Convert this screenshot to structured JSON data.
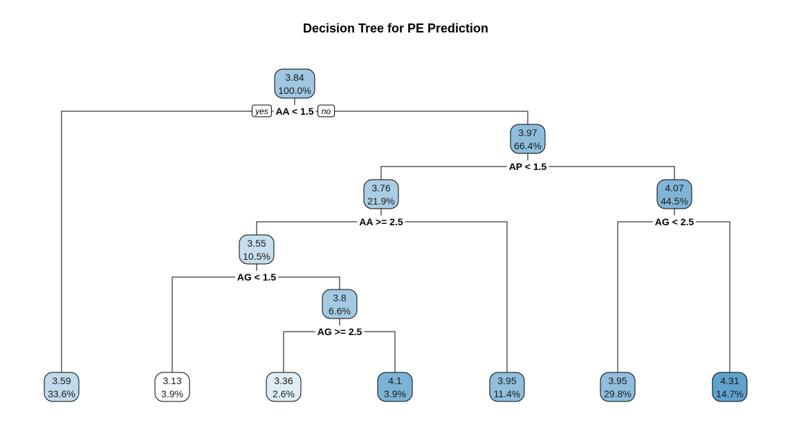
{
  "title": "Decision Tree for PE Prediction",
  "yes_label": "yes",
  "no_label": "no",
  "colors": {
    "node_scale": [
      "#ffffff",
      "#5fa2cd"
    ],
    "edge": "#000000"
  },
  "nodes": [
    {
      "id": "root",
      "value": "3.84",
      "pct": "100.0%",
      "v": 3.84
    },
    {
      "id": "n2",
      "value": "3.97",
      "pct": "66.4%",
      "v": 3.97
    },
    {
      "id": "n3",
      "value": "3.76",
      "pct": "21.9%",
      "v": 3.76
    },
    {
      "id": "n4",
      "value": "4.07",
      "pct": "44.5%",
      "v": 4.07
    },
    {
      "id": "n5",
      "value": "3.55",
      "pct": "10.5%",
      "v": 3.55
    },
    {
      "id": "n6",
      "value": "3.8",
      "pct": "6.6%",
      "v": 3.8
    },
    {
      "id": "leaf1",
      "value": "3.59",
      "pct": "33.6%",
      "v": 3.59
    },
    {
      "id": "leaf2",
      "value": "3.13",
      "pct": "3.9%",
      "v": 3.13
    },
    {
      "id": "leaf3",
      "value": "3.36",
      "pct": "2.6%",
      "v": 3.36
    },
    {
      "id": "leaf4",
      "value": "4.1",
      "pct": "3.9%",
      "v": 4.1
    },
    {
      "id": "leaf5",
      "value": "3.95",
      "pct": "11.4%",
      "v": 3.95
    },
    {
      "id": "leaf6",
      "value": "3.95",
      "pct": "29.8%",
      "v": 3.95
    },
    {
      "id": "leaf7",
      "value": "4.31",
      "pct": "14.7%",
      "v": 4.31
    }
  ],
  "splits": [
    {
      "parent": "root",
      "label": "AA < 1.5",
      "left": "leaf1",
      "right": "n2"
    },
    {
      "parent": "n2",
      "label": "AP < 1.5",
      "left": "n3",
      "right": "n4"
    },
    {
      "parent": "n3",
      "label": "AA >= 2.5",
      "left": "n5",
      "right": "leaf5"
    },
    {
      "parent": "n4",
      "label": "AG < 2.5",
      "left": "leaf6",
      "right": "leaf7"
    },
    {
      "parent": "n5",
      "label": "AG < 1.5",
      "left": "leaf2",
      "right": "n6"
    },
    {
      "parent": "n6",
      "label": "AG >= 2.5",
      "left": "leaf3",
      "right": "leaf4"
    }
  ]
}
